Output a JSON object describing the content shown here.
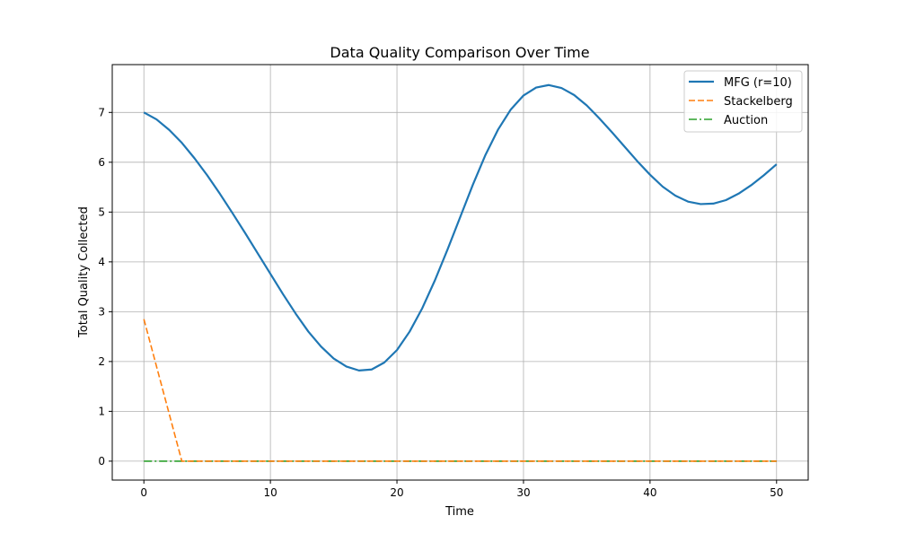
{
  "chart_data": {
    "type": "line",
    "title": "Data Quality Comparison Over Time",
    "xlabel": "Time",
    "ylabel": "Total Quality Collected",
    "xlim": [
      -2.5,
      52.5
    ],
    "ylim": [
      -0.38,
      7.96
    ],
    "xticks": [
      0,
      10,
      20,
      30,
      40,
      50
    ],
    "yticks": [
      0,
      1,
      2,
      3,
      4,
      5,
      6,
      7
    ],
    "grid": true,
    "legend_position": "top-right",
    "series": [
      {
        "name": "MFG (r=10)",
        "color": "#1f77b4",
        "style": "solid",
        "x": [
          0,
          1,
          2,
          3,
          4,
          5,
          6,
          7,
          8,
          9,
          10,
          11,
          12,
          13,
          14,
          15,
          16,
          17,
          18,
          19,
          20,
          21,
          22,
          23,
          24,
          25,
          26,
          27,
          28,
          29,
          30,
          31,
          32,
          33,
          34,
          35,
          36,
          37,
          38,
          39,
          40,
          41,
          42,
          43,
          44,
          45,
          46,
          47,
          48,
          49,
          50
        ],
        "values": [
          7.0,
          6.86,
          6.65,
          6.39,
          6.08,
          5.74,
          5.37,
          4.98,
          4.58,
          4.17,
          3.76,
          3.35,
          2.96,
          2.6,
          2.3,
          2.06,
          1.9,
          1.82,
          1.84,
          1.98,
          2.23,
          2.6,
          3.07,
          3.63,
          4.25,
          4.9,
          5.55,
          6.15,
          6.66,
          7.06,
          7.34,
          7.5,
          7.55,
          7.49,
          7.35,
          7.14,
          6.88,
          6.6,
          6.31,
          6.02,
          5.75,
          5.51,
          5.33,
          5.21,
          5.16,
          5.17,
          5.24,
          5.37,
          5.54,
          5.74,
          5.96
        ]
      },
      {
        "name": "Stackelberg",
        "color": "#ff7f0e",
        "style": "dashed",
        "x": [
          0,
          1,
          2,
          3,
          4,
          5,
          6,
          7,
          8,
          9,
          10,
          11,
          12,
          13,
          14,
          15,
          16,
          17,
          18,
          19,
          20,
          21,
          22,
          23,
          24,
          25,
          26,
          27,
          28,
          29,
          30,
          31,
          32,
          33,
          34,
          35,
          36,
          37,
          38,
          39,
          40,
          41,
          42,
          43,
          44,
          45,
          46,
          47,
          48,
          49,
          50
        ],
        "values": [
          2.85,
          1.9,
          0.95,
          0,
          0,
          0,
          0,
          0,
          0,
          0,
          0,
          0,
          0,
          0,
          0,
          0,
          0,
          0,
          0,
          0,
          0,
          0,
          0,
          0,
          0,
          0,
          0,
          0,
          0,
          0,
          0,
          0,
          0,
          0,
          0,
          0,
          0,
          0,
          0,
          0,
          0,
          0,
          0,
          0,
          0,
          0,
          0,
          0,
          0,
          0,
          0
        ]
      },
      {
        "name": "Auction",
        "color": "#2ca02c",
        "style": "dashdot",
        "x": [
          0,
          1,
          2,
          3,
          4,
          5,
          6,
          7,
          8,
          9,
          10,
          11,
          12,
          13,
          14,
          15,
          16,
          17,
          18,
          19,
          20,
          21,
          22,
          23,
          24,
          25,
          26,
          27,
          28,
          29,
          30,
          31,
          32,
          33,
          34,
          35,
          36,
          37,
          38,
          39,
          40,
          41,
          42,
          43,
          44,
          45,
          46,
          47,
          48,
          49,
          50
        ],
        "values": [
          0,
          0,
          0,
          0,
          0,
          0,
          0,
          0,
          0,
          0,
          0,
          0,
          0,
          0,
          0,
          0,
          0,
          0,
          0,
          0,
          0,
          0,
          0,
          0,
          0,
          0,
          0,
          0,
          0,
          0,
          0,
          0,
          0,
          0,
          0,
          0,
          0,
          0,
          0,
          0,
          0,
          0,
          0,
          0,
          0,
          0,
          0,
          0,
          0,
          0,
          0
        ]
      }
    ]
  }
}
